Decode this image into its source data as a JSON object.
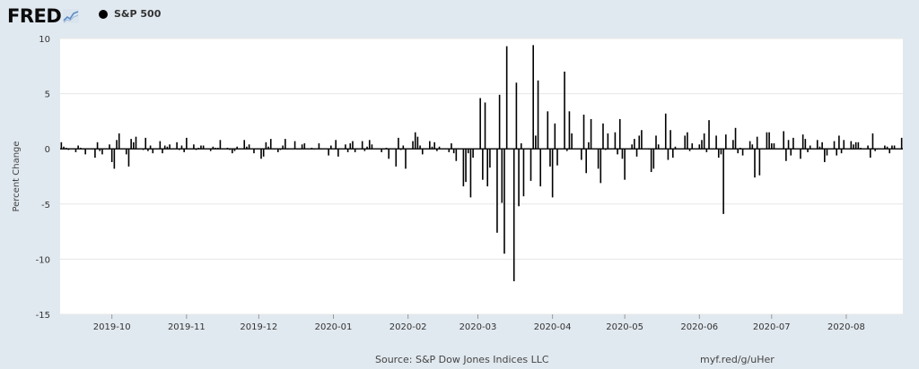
{
  "header": {
    "logo_text": "FRED",
    "legend_label": "S&P 500"
  },
  "footer": {
    "source": "Source: S&P Dow Jones Indices LLC",
    "link": "myf.red/g/uHer"
  },
  "colors": {
    "page_background": "#e1e9f0",
    "plot_background": "#ffffff",
    "series": "#000000",
    "gridline": "#e6e6e6"
  },
  "chart_data": {
    "type": "bar",
    "ylabel": "Percent Change",
    "ylim": [
      -15,
      10
    ],
    "y_ticks": [
      10,
      5,
      0,
      -5,
      -10,
      -15
    ],
    "grid": true,
    "legend_position": "top-left",
    "x_range": [
      "2019-09-10",
      "2020-08-24"
    ],
    "x_ticks": [
      {
        "label": "2019-10",
        "date": "2019-10-01"
      },
      {
        "label": "2019-11",
        "date": "2019-11-01"
      },
      {
        "label": "2019-12",
        "date": "2019-12-01"
      },
      {
        "label": "2020-01",
        "date": "2020-01-01"
      },
      {
        "label": "2020-02",
        "date": "2020-02-01"
      },
      {
        "label": "2020-03",
        "date": "2020-03-01"
      },
      {
        "label": "2020-04",
        "date": "2020-04-01"
      },
      {
        "label": "2020-05",
        "date": "2020-05-01"
      },
      {
        "label": "2020-06",
        "date": "2020-06-01"
      },
      {
        "label": "2020-07",
        "date": "2020-07-01"
      },
      {
        "label": "2020-08",
        "date": "2020-08-01"
      }
    ],
    "series": [
      {
        "name": "S&P 500",
        "points": [
          [
            "2019-09-10",
            0.6
          ],
          [
            "2019-09-11",
            0.2
          ],
          [
            "2019-09-12",
            0.1
          ],
          [
            "2019-09-13",
            -0.1
          ],
          [
            "2019-09-16",
            -0.3
          ],
          [
            "2019-09-17",
            0.3
          ],
          [
            "2019-09-18",
            0.1
          ],
          [
            "2019-09-19",
            0.0
          ],
          [
            "2019-09-20",
            -0.5
          ],
          [
            "2019-09-23",
            0.0
          ],
          [
            "2019-09-24",
            -0.8
          ],
          [
            "2019-09-25",
            0.6
          ],
          [
            "2019-09-26",
            -0.2
          ],
          [
            "2019-09-27",
            -0.5
          ],
          [
            "2019-09-30",
            0.4
          ],
          [
            "2019-10-01",
            -1.2
          ],
          [
            "2019-10-02",
            -1.8
          ],
          [
            "2019-10-03",
            0.8
          ],
          [
            "2019-10-04",
            1.4
          ],
          [
            "2019-10-07",
            -0.5
          ],
          [
            "2019-10-08",
            -1.6
          ],
          [
            "2019-10-09",
            0.9
          ],
          [
            "2019-10-10",
            0.6
          ],
          [
            "2019-10-11",
            1.1
          ],
          [
            "2019-10-14",
            -0.1
          ],
          [
            "2019-10-15",
            1.0
          ],
          [
            "2019-10-16",
            -0.2
          ],
          [
            "2019-10-17",
            0.3
          ],
          [
            "2019-10-18",
            -0.4
          ],
          [
            "2019-10-21",
            0.7
          ],
          [
            "2019-10-22",
            -0.4
          ],
          [
            "2019-10-23",
            0.3
          ],
          [
            "2019-10-24",
            0.2
          ],
          [
            "2019-10-25",
            0.4
          ],
          [
            "2019-10-28",
            0.6
          ],
          [
            "2019-10-29",
            -0.1
          ],
          [
            "2019-10-30",
            0.3
          ],
          [
            "2019-10-31",
            -0.3
          ],
          [
            "2019-11-01",
            1.0
          ],
          [
            "2019-11-04",
            0.4
          ],
          [
            "2019-11-05",
            -0.1
          ],
          [
            "2019-11-06",
            0.1
          ],
          [
            "2019-11-07",
            0.3
          ],
          [
            "2019-11-08",
            0.3
          ],
          [
            "2019-11-11",
            -0.2
          ],
          [
            "2019-11-12",
            0.2
          ],
          [
            "2019-11-13",
            0.1
          ],
          [
            "2019-11-14",
            0.1
          ],
          [
            "2019-11-15",
            0.8
          ],
          [
            "2019-11-18",
            0.1
          ],
          [
            "2019-11-19",
            -0.1
          ],
          [
            "2019-11-20",
            -0.4
          ],
          [
            "2019-11-21",
            -0.2
          ],
          [
            "2019-11-22",
            0.2
          ],
          [
            "2019-11-25",
            0.8
          ],
          [
            "2019-11-26",
            0.2
          ],
          [
            "2019-11-27",
            0.4
          ],
          [
            "2019-11-29",
            -0.4
          ],
          [
            "2019-12-02",
            -0.9
          ],
          [
            "2019-12-03",
            -0.7
          ],
          [
            "2019-12-04",
            0.6
          ],
          [
            "2019-12-05",
            0.2
          ],
          [
            "2019-12-06",
            0.9
          ],
          [
            "2019-12-09",
            -0.3
          ],
          [
            "2019-12-10",
            -0.1
          ],
          [
            "2019-12-11",
            0.3
          ],
          [
            "2019-12-12",
            0.9
          ],
          [
            "2019-12-13",
            0.0
          ],
          [
            "2019-12-16",
            0.7
          ],
          [
            "2019-12-17",
            0.0
          ],
          [
            "2019-12-18",
            0.0
          ],
          [
            "2019-12-19",
            0.4
          ],
          [
            "2019-12-20",
            0.5
          ],
          [
            "2019-12-23",
            0.1
          ],
          [
            "2019-12-24",
            0.0
          ],
          [
            "2019-12-26",
            0.5
          ],
          [
            "2019-12-27",
            0.0
          ],
          [
            "2019-12-30",
            -0.6
          ],
          [
            "2019-12-31",
            0.3
          ],
          [
            "2020-01-02",
            0.8
          ],
          [
            "2020-01-03",
            -0.7
          ],
          [
            "2020-01-06",
            0.4
          ],
          [
            "2020-01-07",
            -0.3
          ],
          [
            "2020-01-08",
            0.5
          ],
          [
            "2020-01-09",
            0.7
          ],
          [
            "2020-01-10",
            -0.3
          ],
          [
            "2020-01-13",
            0.7
          ],
          [
            "2020-01-14",
            -0.2
          ],
          [
            "2020-01-15",
            0.2
          ],
          [
            "2020-01-16",
            0.8
          ],
          [
            "2020-01-17",
            0.4
          ],
          [
            "2020-01-21",
            -0.3
          ],
          [
            "2020-01-22",
            0.0
          ],
          [
            "2020-01-23",
            0.1
          ],
          [
            "2020-01-24",
            -0.9
          ],
          [
            "2020-01-27",
            -1.6
          ],
          [
            "2020-01-28",
            1.0
          ],
          [
            "2020-01-29",
            -0.1
          ],
          [
            "2020-01-30",
            0.3
          ],
          [
            "2020-01-31",
            -1.8
          ],
          [
            "2020-02-03",
            0.7
          ],
          [
            "2020-02-04",
            1.5
          ],
          [
            "2020-02-05",
            1.1
          ],
          [
            "2020-02-06",
            0.3
          ],
          [
            "2020-02-07",
            -0.5
          ],
          [
            "2020-02-10",
            0.7
          ],
          [
            "2020-02-11",
            0.2
          ],
          [
            "2020-02-12",
            0.6
          ],
          [
            "2020-02-13",
            -0.2
          ],
          [
            "2020-02-14",
            0.2
          ],
          [
            "2020-02-18",
            -0.3
          ],
          [
            "2020-02-19",
            0.5
          ],
          [
            "2020-02-20",
            -0.4
          ],
          [
            "2020-02-21",
            -1.1
          ],
          [
            "2020-02-24",
            -3.4
          ],
          [
            "2020-02-25",
            -3.0
          ],
          [
            "2020-02-26",
            -0.4
          ],
          [
            "2020-02-27",
            -4.4
          ],
          [
            "2020-02-28",
            -0.8
          ],
          [
            "2020-03-02",
            4.6
          ],
          [
            "2020-03-03",
            -2.8
          ],
          [
            "2020-03-04",
            4.2
          ],
          [
            "2020-03-05",
            -3.4
          ],
          [
            "2020-03-06",
            -1.7
          ],
          [
            "2020-03-09",
            -7.6
          ],
          [
            "2020-03-10",
            4.9
          ],
          [
            "2020-03-11",
            -4.9
          ],
          [
            "2020-03-12",
            -9.5
          ],
          [
            "2020-03-13",
            9.3
          ],
          [
            "2020-03-16",
            -12.0
          ],
          [
            "2020-03-17",
            6.0
          ],
          [
            "2020-03-18",
            -5.2
          ],
          [
            "2020-03-19",
            0.5
          ],
          [
            "2020-03-20",
            -4.3
          ],
          [
            "2020-03-23",
            -2.9
          ],
          [
            "2020-03-24",
            9.4
          ],
          [
            "2020-03-25",
            1.2
          ],
          [
            "2020-03-26",
            6.2
          ],
          [
            "2020-03-27",
            -3.4
          ],
          [
            "2020-03-30",
            3.4
          ],
          [
            "2020-03-31",
            -1.6
          ],
          [
            "2020-04-01",
            -4.4
          ],
          [
            "2020-04-02",
            2.3
          ],
          [
            "2020-04-03",
            -1.5
          ],
          [
            "2020-04-06",
            7.0
          ],
          [
            "2020-04-07",
            -0.2
          ],
          [
            "2020-04-08",
            3.4
          ],
          [
            "2020-04-09",
            1.4
          ],
          [
            "2020-04-13",
            -1.0
          ],
          [
            "2020-04-14",
            3.1
          ],
          [
            "2020-04-15",
            -2.2
          ],
          [
            "2020-04-16",
            0.6
          ],
          [
            "2020-04-17",
            2.7
          ],
          [
            "2020-04-20",
            -1.8
          ],
          [
            "2020-04-21",
            -3.1
          ],
          [
            "2020-04-22",
            2.3
          ],
          [
            "2020-04-23",
            -0.1
          ],
          [
            "2020-04-24",
            1.4
          ],
          [
            "2020-04-27",
            1.5
          ],
          [
            "2020-04-28",
            -0.5
          ],
          [
            "2020-04-29",
            2.7
          ],
          [
            "2020-04-30",
            -0.9
          ],
          [
            "2020-05-01",
            -2.8
          ],
          [
            "2020-05-04",
            0.4
          ],
          [
            "2020-05-05",
            0.9
          ],
          [
            "2020-05-06",
            -0.7
          ],
          [
            "2020-05-07",
            1.2
          ],
          [
            "2020-05-08",
            1.7
          ],
          [
            "2020-05-11",
            0.0
          ],
          [
            "2020-05-12",
            -2.1
          ],
          [
            "2020-05-13",
            -1.8
          ],
          [
            "2020-05-14",
            1.2
          ],
          [
            "2020-05-15",
            0.4
          ],
          [
            "2020-05-18",
            3.2
          ],
          [
            "2020-05-19",
            -1.0
          ],
          [
            "2020-05-20",
            1.7
          ],
          [
            "2020-05-21",
            -0.8
          ],
          [
            "2020-05-22",
            0.2
          ],
          [
            "2020-05-26",
            1.2
          ],
          [
            "2020-05-27",
            1.5
          ],
          [
            "2020-05-28",
            -0.2
          ],
          [
            "2020-05-29",
            0.5
          ],
          [
            "2020-06-01",
            0.4
          ],
          [
            "2020-06-02",
            0.8
          ],
          [
            "2020-06-03",
            1.4
          ],
          [
            "2020-06-04",
            -0.3
          ],
          [
            "2020-06-05",
            2.6
          ],
          [
            "2020-06-08",
            1.2
          ],
          [
            "2020-06-09",
            -0.8
          ],
          [
            "2020-06-10",
            -0.5
          ],
          [
            "2020-06-11",
            -5.9
          ],
          [
            "2020-06-12",
            1.3
          ],
          [
            "2020-06-15",
            0.8
          ],
          [
            "2020-06-16",
            1.9
          ],
          [
            "2020-06-17",
            -0.4
          ],
          [
            "2020-06-18",
            0.1
          ],
          [
            "2020-06-19",
            -0.6
          ],
          [
            "2020-06-22",
            0.7
          ],
          [
            "2020-06-23",
            0.4
          ],
          [
            "2020-06-24",
            -2.6
          ],
          [
            "2020-06-25",
            1.1
          ],
          [
            "2020-06-26",
            -2.4
          ],
          [
            "2020-06-29",
            1.5
          ],
          [
            "2020-06-30",
            1.5
          ],
          [
            "2020-07-01",
            0.5
          ],
          [
            "2020-07-02",
            0.5
          ],
          [
            "2020-07-06",
            1.6
          ],
          [
            "2020-07-07",
            -1.1
          ],
          [
            "2020-07-08",
            0.8
          ],
          [
            "2020-07-09",
            -0.6
          ],
          [
            "2020-07-10",
            1.0
          ],
          [
            "2020-07-13",
            -0.9
          ],
          [
            "2020-07-14",
            1.3
          ],
          [
            "2020-07-15",
            0.9
          ],
          [
            "2020-07-16",
            -0.3
          ],
          [
            "2020-07-17",
            0.3
          ],
          [
            "2020-07-20",
            0.8
          ],
          [
            "2020-07-21",
            0.2
          ],
          [
            "2020-07-22",
            0.6
          ],
          [
            "2020-07-23",
            -1.2
          ],
          [
            "2020-07-24",
            -0.6
          ],
          [
            "2020-07-27",
            0.7
          ],
          [
            "2020-07-28",
            -0.6
          ],
          [
            "2020-07-29",
            1.2
          ],
          [
            "2020-07-30",
            -0.4
          ],
          [
            "2020-07-31",
            0.8
          ],
          [
            "2020-08-03",
            0.7
          ],
          [
            "2020-08-04",
            0.4
          ],
          [
            "2020-08-05",
            0.6
          ],
          [
            "2020-08-06",
            0.6
          ],
          [
            "2020-08-07",
            0.1
          ],
          [
            "2020-08-10",
            0.3
          ],
          [
            "2020-08-11",
            -0.8
          ],
          [
            "2020-08-12",
            1.4
          ],
          [
            "2020-08-13",
            -0.2
          ],
          [
            "2020-08-14",
            0.0
          ],
          [
            "2020-08-17",
            0.3
          ],
          [
            "2020-08-18",
            0.2
          ],
          [
            "2020-08-19",
            -0.4
          ],
          [
            "2020-08-20",
            0.3
          ],
          [
            "2020-08-21",
            0.3
          ],
          [
            "2020-08-24",
            1.0
          ]
        ]
      }
    ]
  }
}
